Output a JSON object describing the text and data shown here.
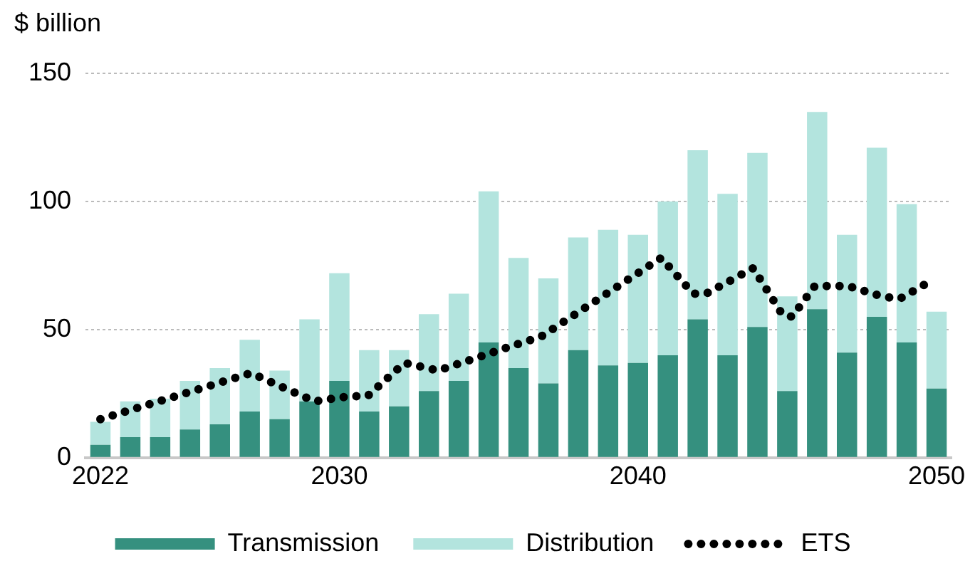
{
  "chart_data": {
    "type": "bar",
    "ylabel": "$ billion",
    "x": [
      2022,
      2023,
      2024,
      2025,
      2026,
      2027,
      2028,
      2029,
      2030,
      2031,
      2032,
      2033,
      2034,
      2035,
      2036,
      2037,
      2038,
      2039,
      2040,
      2041,
      2042,
      2043,
      2044,
      2045,
      2046,
      2047,
      2048,
      2049,
      2050
    ],
    "xlim": [
      2021.5,
      2050.5
    ],
    "xticks": [
      2022,
      2030,
      2040,
      2050
    ],
    "ylim": [
      0,
      150
    ],
    "yticks": [
      0,
      50,
      100,
      150
    ],
    "grid": "y",
    "legend": "bottom",
    "stacked": true,
    "series": [
      {
        "name": "Transmission",
        "color": "#35907f",
        "values": [
          5,
          8,
          8,
          11,
          13,
          18,
          15,
          22,
          30,
          18,
          20,
          26,
          30,
          45,
          35,
          29,
          42,
          36,
          37,
          40,
          54,
          40,
          51,
          26,
          58,
          41,
          55,
          45,
          27
        ]
      },
      {
        "name": "Distribution",
        "color": "#b3e4de",
        "values": [
          9,
          14,
          15,
          19,
          22,
          28,
          19,
          32,
          42,
          24,
          22,
          30,
          34,
          59,
          43,
          41,
          44,
          53,
          50,
          60,
          66,
          63,
          68,
          37,
          77,
          46,
          66,
          54,
          30
        ]
      },
      {
        "name": "ETS",
        "type": "line",
        "color": "#000000",
        "line_style": "dotted",
        "x": [
          2022,
          2027.04,
          2029.17,
          2030.34,
          2030.94,
          2032.18,
          2033.31,
          2036.14,
          2036.72,
          2040.78,
          2041.85,
          2042.28,
          2043.86,
          2044.83,
          2045.16,
          2045.92,
          2047.05,
          2048.16,
          2048.76,
          2049.81
        ],
        "values": [
          15,
          33,
          22,
          24,
          24,
          37,
          34,
          45,
          47,
          78,
          64,
          64,
          74,
          56,
          55,
          67,
          67,
          63,
          62,
          69
        ]
      }
    ]
  }
}
